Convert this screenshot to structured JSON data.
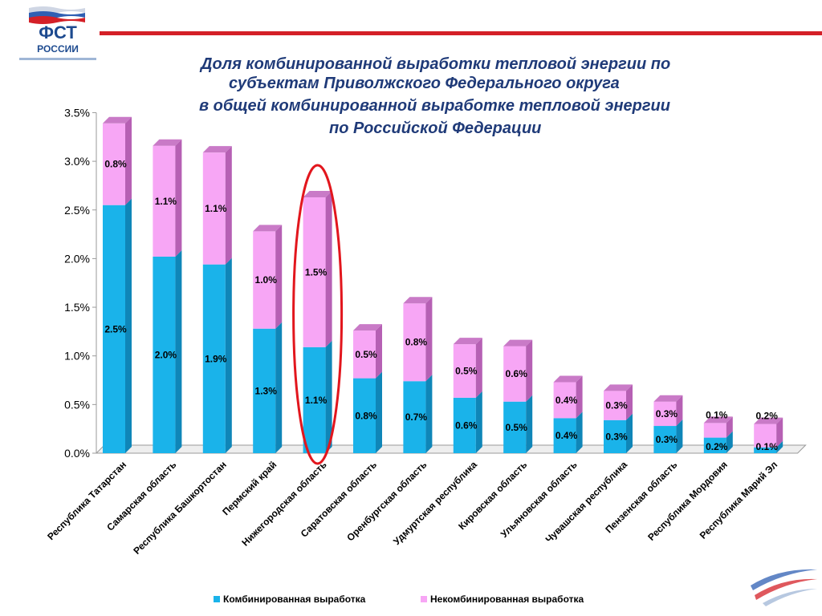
{
  "logo": {
    "text": "ФСТ",
    "sub": "РОССИИ"
  },
  "title_lines": [
    "Доля комбинированной выработки тепловой энергии по",
    "субъектам Приволжского Федерального округа",
    "в общей комбинированной  выработке тепловой энергии",
    "по Российской Федерации"
  ],
  "colors": {
    "combined": "#1ab3ea",
    "combined_side": "#0f86b8",
    "combined_top": "#4ac6f0",
    "noncombined": "#f7a6f5",
    "noncombined_side": "#b660b4",
    "noncombined_top": "#c97ac7",
    "highlight": "#e2161d",
    "accent": "#d42027"
  },
  "chart_data": {
    "type": "bar",
    "stacked": true,
    "categories": [
      "Республика Татарстан",
      "Самарская область",
      "Республика Башкортостан",
      "Пермский край",
      "Нижегородская область",
      "Саратовская область",
      "Оренбургская область",
      "Удмуртская республика",
      "Кировская область",
      "Ульяновская область",
      "Чувашская республика",
      "Пензенская область",
      "Республика Мордовия",
      "Республика Марий Эл"
    ],
    "series": [
      {
        "name": "Комбинированная выработка",
        "values": [
          2.55,
          2.02,
          1.94,
          1.28,
          1.09,
          0.77,
          0.74,
          0.57,
          0.53,
          0.36,
          0.34,
          0.28,
          0.16,
          0.06
        ],
        "labels": [
          "2.5%",
          "2.0%",
          "1.9%",
          "1.3%",
          "1.1%",
          "0.8%",
          "0.7%",
          "0.6%",
          "0.5%",
          "0.4%",
          "0.3%",
          "0.3%",
          "0.2%",
          "0.1%"
        ]
      },
      {
        "name": "Некомбинированная выработка",
        "values": [
          0.84,
          1.14,
          1.15,
          1.0,
          1.54,
          0.49,
          0.8,
          0.55,
          0.57,
          0.37,
          0.3,
          0.25,
          0.15,
          0.24
        ],
        "labels": [
          "0.8%",
          "1.1%",
          "1.1%",
          "1.0%",
          "1.5%",
          "0.5%",
          "0.8%",
          "0.5%",
          "0.6%",
          "0.4%",
          "0.3%",
          "0.3%",
          "0.1%",
          "0.2%"
        ]
      }
    ],
    "ylim": [
      0,
      3.5
    ],
    "yticks": [
      0,
      0.5,
      1.0,
      1.5,
      2.0,
      2.5,
      3.0,
      3.5
    ],
    "ytick_labels": [
      "0.0%",
      "0.5%",
      "1.0%",
      "1.5%",
      "2.0%",
      "2.5%",
      "3.0%",
      "3.5%"
    ],
    "highlighted_category": "Нижегородская область",
    "legend_position": "bottom",
    "grid": false
  }
}
